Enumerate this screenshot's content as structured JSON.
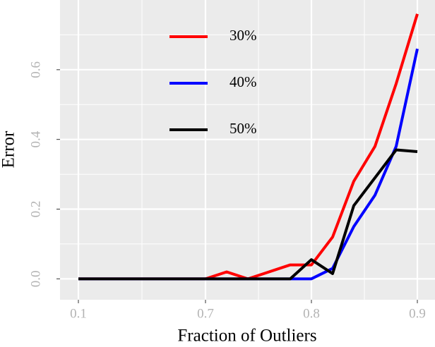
{
  "chart_data": {
    "type": "line",
    "x_label": "Fraction of Outliers",
    "y_label": "Error",
    "categories": [
      "0.1",
      null,
      null,
      null,
      null,
      null,
      "0.7",
      null,
      null,
      null,
      null,
      "0.8",
      null,
      null,
      null,
      null,
      "0.9"
    ],
    "series": [
      {
        "name": "30%",
        "color": "#ff0000",
        "values": [
          0,
          0,
          0,
          0,
          0,
          0,
          0,
          0.02,
          0,
          0.02,
          0.04,
          0.04,
          0.12,
          0.28,
          0.38,
          0.56,
          0.76
        ]
      },
      {
        "name": "40%",
        "color": "#0000ff",
        "values": [
          0,
          0,
          0,
          0,
          0,
          0,
          0,
          0,
          0,
          0,
          0,
          0,
          0.03,
          0.15,
          0.24,
          0.38,
          0.66
        ]
      },
      {
        "name": "50%",
        "color": "#000000",
        "values": [
          0,
          0,
          0,
          0,
          0,
          0,
          0,
          0,
          0,
          0,
          0,
          0.055,
          0.015,
          0.21,
          0.29,
          0.37,
          0.365
        ]
      }
    ],
    "ylim": [
      -0.06,
      0.8
    ],
    "yticks": [
      {
        "value": 0,
        "label": "0.0"
      },
      0.2,
      0.4,
      0.6
    ],
    "grid": true,
    "legend": "top"
  }
}
